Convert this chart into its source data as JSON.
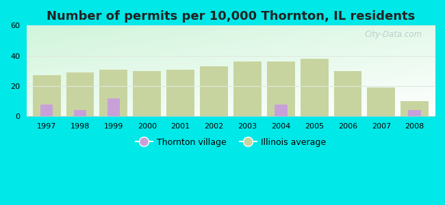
{
  "title": "Number of permits per 10,000 Thornton, IL residents",
  "years": [
    1997,
    1998,
    1999,
    2000,
    2001,
    2002,
    2003,
    2004,
    2005,
    2006,
    2007,
    2008
  ],
  "thornton": [
    8,
    4,
    12,
    0,
    0,
    0,
    0,
    8,
    0,
    0,
    0,
    4
  ],
  "illinois": [
    27,
    29,
    31,
    30,
    31,
    33,
    36,
    36,
    38,
    30,
    19,
    10
  ],
  "thornton_color": "#c8a0d8",
  "illinois_color": "#c8d4a0",
  "ylim": [
    0,
    60
  ],
  "yticks": [
    0,
    20,
    40,
    60
  ],
  "bar_width": 0.38,
  "legend_thornton": "Thornton village",
  "legend_illinois": "Illinois average",
  "outer_bg": "#00e8e8",
  "watermark": "City-Data.com",
  "title_fontsize": 13,
  "tick_fontsize": 8,
  "grid_color": "#e0e8e0",
  "spine_color": "#cccccc"
}
